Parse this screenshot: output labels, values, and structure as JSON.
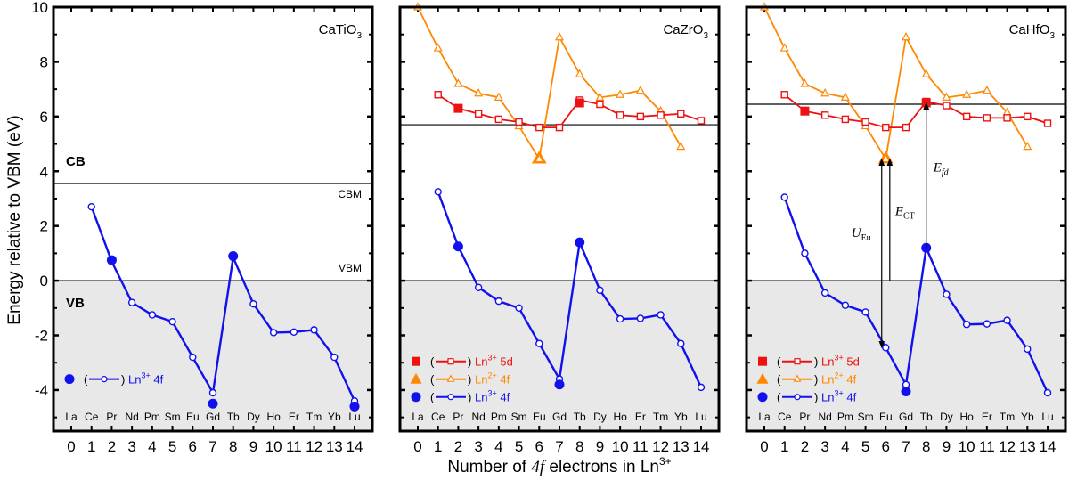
{
  "chart_data": {
    "type": "line",
    "ylabel": "Energy relative to VBM (eV)",
    "xlabel": "Number of 4f electrons in Ln3+",
    "xlabel_parts": {
      "pre": "Number of ",
      "italic": "4f",
      "post": " electrons in Ln",
      "sup": "3+"
    },
    "ylim": [
      -5.5,
      10
    ],
    "yticks": [
      -4,
      -2,
      0,
      2,
      4,
      6,
      8,
      10
    ],
    "xticks": [
      0,
      1,
      2,
      3,
      4,
      5,
      6,
      7,
      8,
      9,
      10,
      11,
      12,
      13,
      14
    ],
    "elements": [
      "La",
      "Ce",
      "Pr",
      "Nd",
      "Pm",
      "Sm",
      "Eu",
      "Gd",
      "Tb",
      "Dy",
      "Ho",
      "Er",
      "Tm",
      "Yb",
      "Lu"
    ],
    "colors": {
      "5d": "#ee1111",
      "2plus": "#ff8800",
      "4f": "#1111ee",
      "vb_fill": "#e8e8e8"
    },
    "band_labels": {
      "cb": "CB",
      "vb": "VB",
      "cbm": "CBM",
      "vbm": "VBM"
    },
    "panels": [
      {
        "title": "CaTiO",
        "title_sub": "3",
        "cbm": 3.55,
        "show_band_labels": true,
        "series": [
          {
            "name": "Ln3+ 4f",
            "key": "4f",
            "x": [
              1,
              2,
              3,
              4,
              5,
              6,
              7,
              8,
              9,
              10,
              11,
              12,
              13,
              14
            ],
            "values": [
              2.7,
              0.7,
              -0.8,
              -1.25,
              -1.5,
              -2.8,
              -4.1,
              0.85,
              -0.85,
              -1.9,
              -1.88,
              -1.8,
              -2.8,
              -4.4
            ],
            "filled": [
              {
                "x": 2,
                "y": 0.75
              },
              {
                "x": 8,
                "y": 0.9
              },
              {
                "x": 7,
                "y": -4.5
              },
              {
                "x": 14,
                "y": -4.6
              }
            ]
          }
        ],
        "legend": [
          {
            "key": "4f",
            "label": "Ln",
            "sup": "3+",
            "suffix": " 4f"
          }
        ]
      },
      {
        "title": "CaZrO",
        "title_sub": "3",
        "cbm": 5.7,
        "show_band_labels": false,
        "series": [
          {
            "name": "Ln2+ 4f",
            "key": "2plus",
            "x": [
              0,
              1,
              2,
              3,
              4,
              5,
              6,
              7,
              8,
              9,
              10,
              11,
              12,
              13
            ],
            "values": [
              10,
              8.5,
              7.2,
              6.85,
              6.7,
              5.65,
              4.45,
              8.9,
              7.55,
              6.7,
              6.8,
              6.95,
              6.2,
              4.9
            ],
            "filled": [
              {
                "x": 6,
                "y": 4.45
              }
            ]
          },
          {
            "name": "Ln3+ 5d",
            "key": "5d",
            "x": [
              1,
              2,
              3,
              4,
              5,
              6,
              7,
              8,
              9,
              10,
              11,
              12,
              13,
              14
            ],
            "values": [
              6.8,
              6.3,
              6.1,
              5.9,
              5.8,
              5.6,
              5.6,
              6.6,
              6.45,
              6.05,
              6.0,
              6.05,
              6.1,
              5.85
            ],
            "filled": [
              {
                "x": 2,
                "y": 6.3
              },
              {
                "x": 8,
                "y": 6.5
              }
            ]
          },
          {
            "name": "Ln3+ 4f",
            "key": "4f",
            "x": [
              1,
              2,
              3,
              4,
              5,
              6,
              7,
              8,
              9,
              10,
              11,
              12,
              13,
              14
            ],
            "values": [
              3.25,
              1.25,
              -0.25,
              -0.75,
              -1.0,
              -2.3,
              -3.6,
              1.4,
              -0.35,
              -1.4,
              -1.38,
              -1.25,
              -2.3,
              -3.9
            ],
            "filled": [
              {
                "x": 2,
                "y": 1.25
              },
              {
                "x": 8,
                "y": 1.4
              },
              {
                "x": 7,
                "y": -3.8
              }
            ]
          }
        ],
        "legend": [
          {
            "key": "5d",
            "label": "Ln",
            "sup": "3+",
            "suffix": " 5d"
          },
          {
            "key": "2plus",
            "label": "Ln",
            "sup": "2+",
            "suffix": " 4f"
          },
          {
            "key": "4f",
            "label": "Ln",
            "sup": "3+",
            "suffix": " 4f"
          }
        ]
      },
      {
        "title": "CaHfO",
        "title_sub": "3",
        "cbm": 6.45,
        "show_band_labels": false,
        "series": [
          {
            "name": "Ln2+ 4f",
            "key": "2plus",
            "x": [
              0,
              1,
              2,
              3,
              4,
              5,
              6,
              7,
              8,
              9,
              10,
              11,
              12,
              13
            ],
            "values": [
              10,
              8.5,
              7.2,
              6.85,
              6.7,
              5.65,
              4.45,
              8.9,
              7.55,
              6.7,
              6.8,
              6.95,
              6.15,
              4.9
            ],
            "filled": [
              {
                "x": 6,
                "y": 4.45
              }
            ]
          },
          {
            "name": "Ln3+ 5d",
            "key": "5d",
            "x": [
              1,
              2,
              3,
              4,
              5,
              6,
              7,
              8,
              9,
              10,
              11,
              12,
              13,
              14
            ],
            "values": [
              6.8,
              6.2,
              6.05,
              5.9,
              5.8,
              5.6,
              5.6,
              6.55,
              6.4,
              6.0,
              5.95,
              5.95,
              6.0,
              5.75
            ],
            "filled": [
              {
                "x": 2,
                "y": 6.2
              },
              {
                "x": 8,
                "y": 6.5
              }
            ]
          },
          {
            "name": "Ln3+ 4f",
            "key": "4f",
            "x": [
              1,
              2,
              3,
              4,
              5,
              6,
              7,
              8,
              9,
              10,
              11,
              12,
              13,
              14
            ],
            "values": [
              3.05,
              1.0,
              -0.45,
              -0.9,
              -1.15,
              -2.45,
              -3.8,
              1.2,
              -0.5,
              -1.6,
              -1.58,
              -1.45,
              -2.5,
              -4.1
            ],
            "filled": [
              {
                "x": 8,
                "y": 1.2
              },
              {
                "x": 7,
                "y": -4.05
              }
            ]
          }
        ],
        "legend": [
          {
            "key": "5d",
            "label": "Ln",
            "sup": "3+",
            "suffix": " 5d"
          },
          {
            "key": "2plus",
            "label": "Ln",
            "sup": "2+",
            "suffix": " 4f"
          },
          {
            "key": "4f",
            "label": "Ln",
            "sup": "3+",
            "suffix": " 4f"
          }
        ],
        "annotations": [
          {
            "label": "U",
            "sub": "Eu",
            "x": 5.8,
            "from": 4.45,
            "to": -2.45,
            "dir": "both"
          },
          {
            "label": "E",
            "sub": "CT",
            "x": 6.2,
            "from": 0,
            "to": 4.45,
            "dir": "up"
          },
          {
            "label": "E",
            "sub": "fd",
            "x": 8,
            "from": 1.2,
            "to": 6.5,
            "dir": "up"
          }
        ]
      }
    ]
  }
}
